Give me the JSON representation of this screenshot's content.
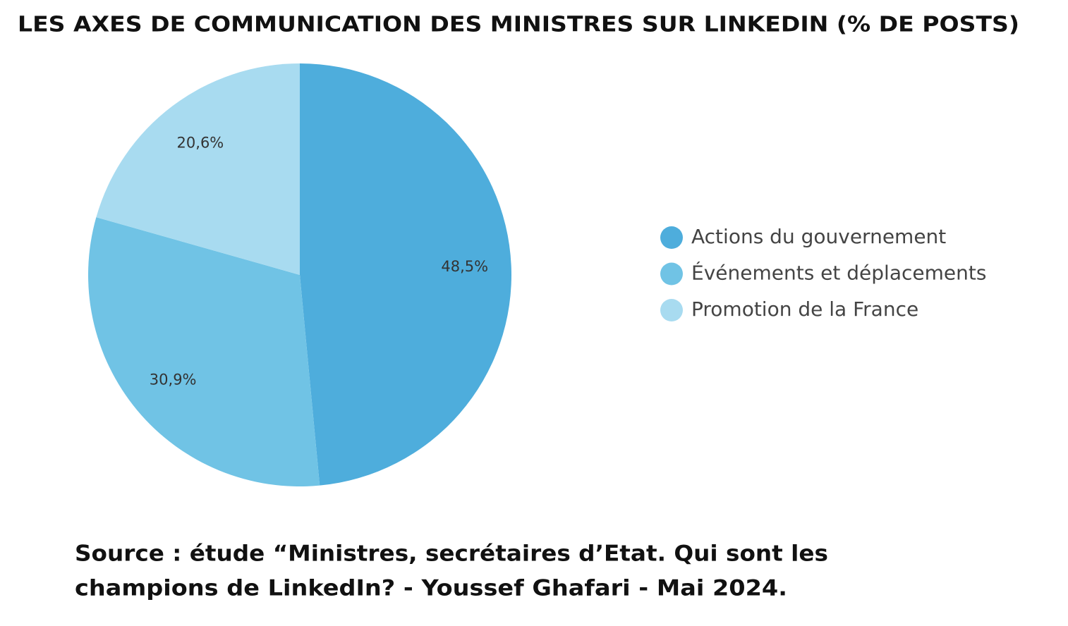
{
  "chart_data": {
    "type": "pie",
    "title": "LES AXES DE COMMUNICATION DES MINISTRES SUR LINKEDIN (% DE POSTS)",
    "categories": [
      "Actions du gouvernement",
      "Événements et déplacements",
      "Promotion de la France"
    ],
    "values": [
      48.5,
      30.9,
      20.6
    ],
    "value_labels": [
      "48,5%",
      "30,9%",
      "20,6%"
    ],
    "colors": [
      "#4eaddc",
      "#70c3e5",
      "#a8dbf0"
    ],
    "legend": "right",
    "source": [
      "Source : étude “Ministres, secrétaires d’Etat. Qui sont les",
      "champions de LinkedIn? - Youssef Ghafari - Mai 2024."
    ]
  }
}
